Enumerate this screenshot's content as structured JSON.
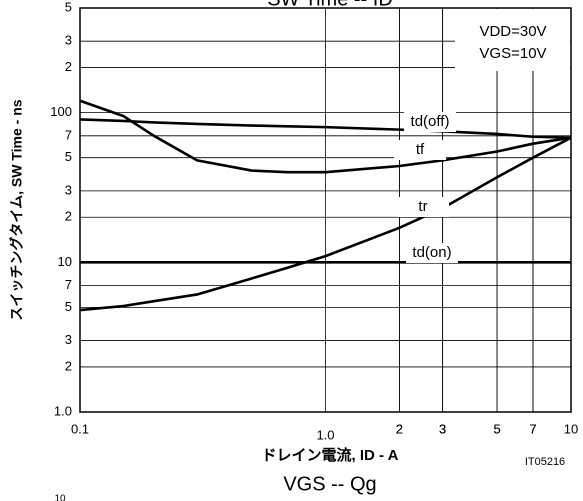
{
  "chart_data": {
    "type": "line",
    "title": "SW Time -- ID",
    "subtitle": "VGS -- Qg",
    "x_label": "ドレイン電流, ID - A",
    "y_label": "スイッチングタイム, SW Time - ns",
    "figure_id": "IT05216",
    "conditions": [
      "VDD=30V",
      "VGS=10V"
    ],
    "clipped_label": "10",
    "log_x": true,
    "log_y": true,
    "grid": true,
    "xlim": [
      0.1,
      10
    ],
    "ylim": [
      1,
      500
    ],
    "xticks": [
      0.1,
      2,
      3,
      5,
      7,
      {
        "value": 1,
        "label": "1.0"
      },
      2,
      3,
      5,
      7,
      10
    ],
    "yticks": [
      {
        "value": 500,
        "label": "5"
      },
      {
        "value": 300,
        "label": "3"
      },
      {
        "value": 200,
        "label": "2"
      },
      100,
      {
        "value": 70,
        "label": "7"
      },
      {
        "value": 50,
        "label": "5"
      },
      {
        "value": 30,
        "label": "3"
      },
      {
        "value": 20,
        "label": "2"
      },
      10,
      7,
      5,
      3,
      2,
      {
        "value": 1,
        "label": "1.0"
      }
    ],
    "x": [
      0.1,
      0.15,
      0.2,
      0.3,
      0.5,
      0.7,
      1,
      2,
      3,
      5,
      7,
      10
    ],
    "series": [
      {
        "name": "td(off)",
        "color": "#000000",
        "values": [
          90,
          88,
          86,
          84,
          82,
          81,
          80,
          77,
          75,
          72,
          69,
          68
        ]
      },
      {
        "name": "tf",
        "color": "#000000",
        "values": [
          120,
          95,
          70,
          48,
          41,
          40,
          40,
          44,
          48,
          55,
          62,
          68
        ]
      },
      {
        "name": "tr",
        "color": "#000000",
        "values": [
          4.8,
          5.1,
          5.5,
          6.1,
          7.8,
          9.2,
          11,
          17,
          23,
          37,
          50,
          68
        ]
      },
      {
        "name": "td(on)",
        "color": "#000000",
        "values": [
          10,
          10,
          10,
          10,
          10,
          10,
          10,
          10,
          10,
          10,
          10,
          10
        ]
      }
    ]
  }
}
